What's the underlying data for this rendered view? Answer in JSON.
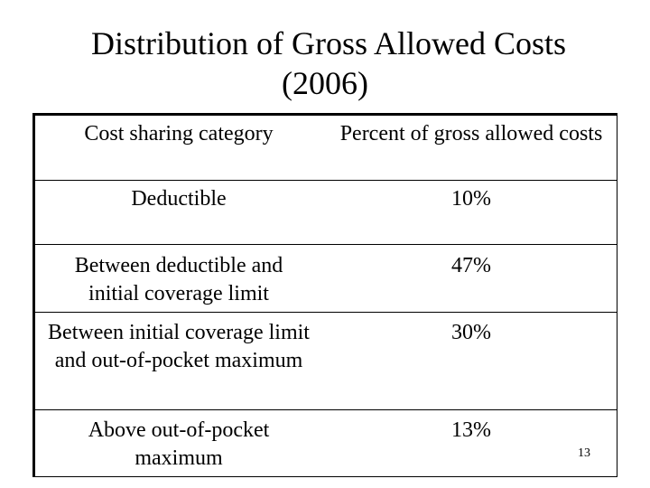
{
  "title": {
    "line1": "Distribution of Gross Allowed Costs",
    "line2": "(2006)"
  },
  "table": {
    "headers": [
      "Cost sharing category",
      "Percent of gross allowed costs"
    ],
    "rows": [
      {
        "category": "Deductible",
        "percent": "10%"
      },
      {
        "category": "Between deductible and initial coverage limit",
        "percent": "47%"
      },
      {
        "category": "Between initial coverage limit and out-of-pocket maximum",
        "percent": "30%"
      },
      {
        "category": "Above out-of-pocket maximum",
        "percent": "13%"
      }
    ]
  },
  "slide_number": "13"
}
